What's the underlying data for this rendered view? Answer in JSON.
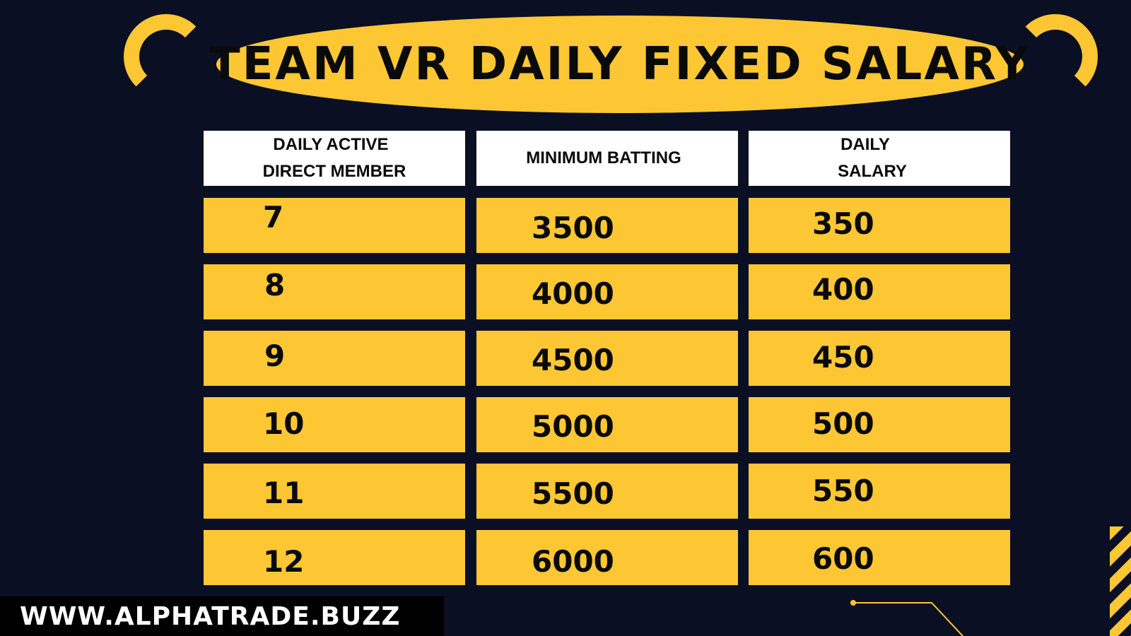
{
  "title": "TEAM VR DAILY FIXED SALARY",
  "table": {
    "headers": [
      [
        "DAILY ACTIVE",
        "DIRECT MEMBER"
      ],
      [
        "MINIMUM BATTING"
      ],
      [
        "DAILY",
        "SALARY"
      ]
    ],
    "rows": [
      [
        "7",
        "3500",
        "350"
      ],
      [
        "8",
        "4000",
        "400"
      ],
      [
        "9",
        "4500",
        "450"
      ],
      [
        "10",
        "5000",
        "500"
      ],
      [
        "11",
        "5500",
        "550"
      ],
      [
        "12",
        "6000",
        "600"
      ]
    ]
  },
  "footer": {
    "website": "WWW.ALPHATRADE.BUZZ"
  },
  "colors": {
    "background": "#0a0f24",
    "accent": "#fcc733",
    "text": "#0a0a0a"
  }
}
